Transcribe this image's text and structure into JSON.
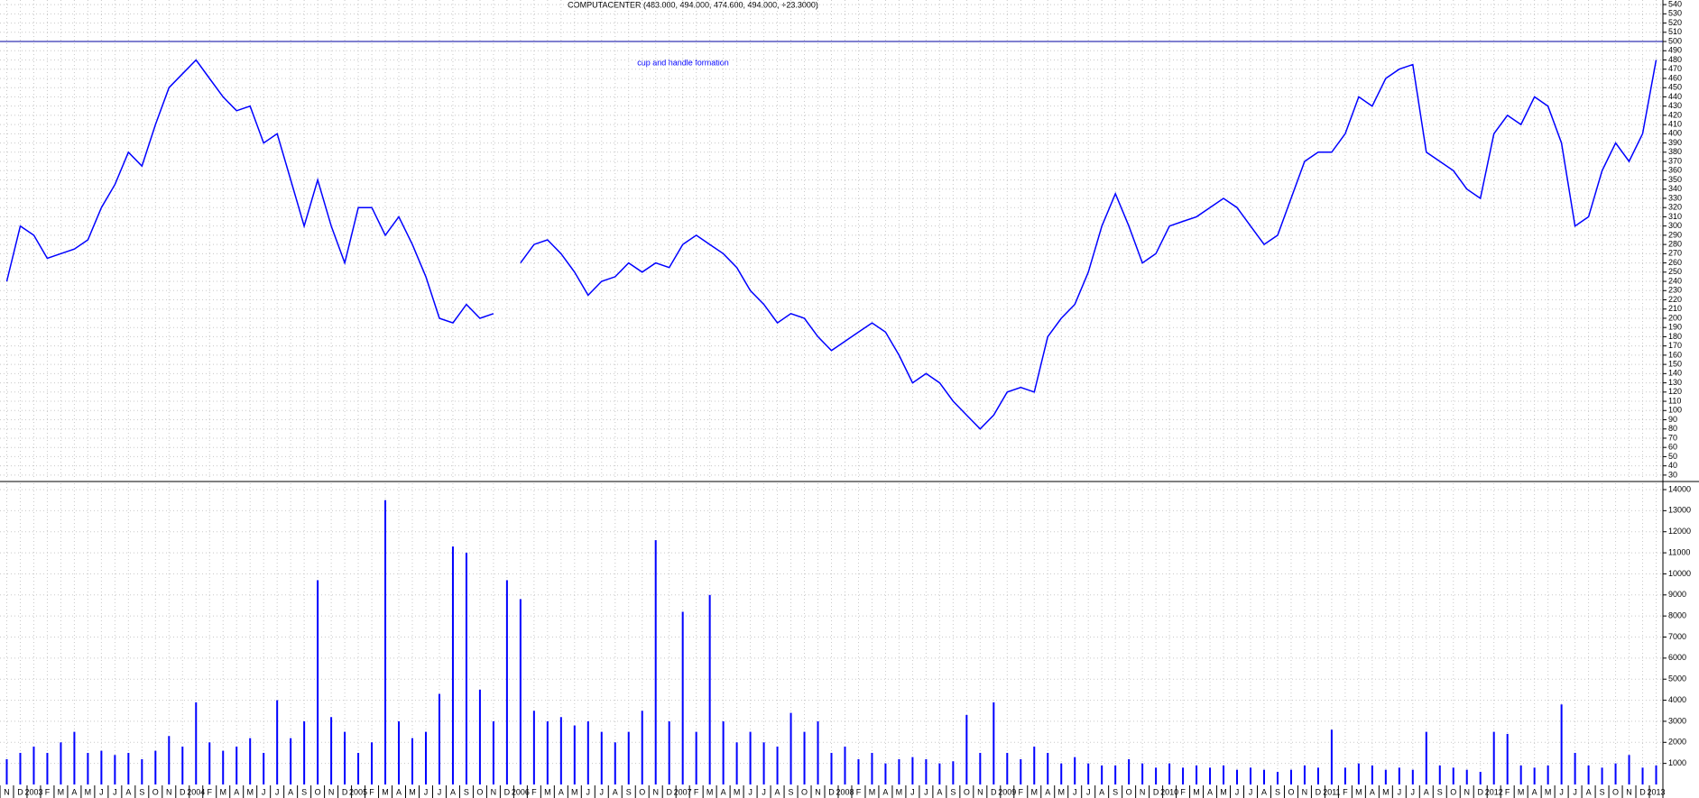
{
  "chart_data": [
    {
      "type": "line",
      "title": "COMPUTACENTER (483.000, 494.000, 474.600, 494.000, +23.3000)",
      "annotation": "cup and handle formation",
      "hline": 500,
      "color": "#0000ff",
      "hline_color": "#0000a0",
      "grid": true,
      "categories": [
        "N",
        "D",
        "2003",
        "F",
        "M",
        "A",
        "M",
        "J",
        "J",
        "A",
        "S",
        "O",
        "N",
        "D",
        "2004",
        "F",
        "M",
        "A",
        "M",
        "J",
        "J",
        "A",
        "S",
        "O",
        "N",
        "D",
        "2005",
        "F",
        "M",
        "A",
        "M",
        "J",
        "J",
        "A",
        "S",
        "O",
        "N",
        "D",
        "2006",
        "F",
        "M",
        "A",
        "M",
        "J",
        "J",
        "A",
        "S",
        "O",
        "N",
        "D",
        "2007",
        "F",
        "M",
        "A",
        "M",
        "J",
        "J",
        "A",
        "S",
        "O",
        "N",
        "D",
        "2008",
        "F",
        "M",
        "A",
        "M",
        "J",
        "J",
        "A",
        "S",
        "O",
        "N",
        "D",
        "2009",
        "F",
        "M",
        "A",
        "M",
        "J",
        "J",
        "A",
        "S",
        "O",
        "N",
        "D",
        "2010",
        "F",
        "M",
        "A",
        "M",
        "J",
        "J",
        "A",
        "S",
        "O",
        "N",
        "D",
        "2011",
        "F",
        "M",
        "A",
        "M",
        "J",
        "J",
        "A",
        "S",
        "O",
        "N",
        "D",
        "2012",
        "F",
        "M",
        "A",
        "M",
        "J",
        "J",
        "A",
        "S",
        "O",
        "N",
        "D",
        "2013"
      ],
      "values": [
        240,
        300,
        290,
        265,
        270,
        275,
        285,
        320,
        345,
        380,
        365,
        410,
        450,
        465,
        480,
        460,
        440,
        425,
        430,
        390,
        400,
        350,
        300,
        350,
        300,
        260,
        320,
        320,
        290,
        310,
        280,
        245,
        200,
        195,
        215,
        200,
        205,
        null,
        260,
        280,
        285,
        270,
        250,
        225,
        240,
        245,
        260,
        250,
        260,
        255,
        280,
        290,
        280,
        270,
        255,
        230,
        215,
        195,
        205,
        200,
        180,
        165,
        175,
        185,
        195,
        185,
        160,
        130,
        140,
        130,
        110,
        95,
        80,
        95,
        120,
        125,
        120,
        180,
        200,
        215,
        250,
        300,
        335,
        300,
        260,
        270,
        300,
        305,
        310,
        320,
        330,
        320,
        300,
        280,
        290,
        330,
        370,
        380,
        380,
        400,
        440,
        430,
        460,
        470,
        475,
        380,
        370,
        360,
        340,
        330,
        400,
        420,
        410,
        440,
        430,
        390,
        300,
        310,
        360,
        390,
        370,
        400,
        480
      ],
      "ylim": [
        25,
        545
      ],
      "yticks": [
        30,
        40,
        50,
        60,
        70,
        80,
        90,
        100,
        110,
        120,
        130,
        140,
        150,
        160,
        170,
        180,
        190,
        200,
        210,
        220,
        230,
        240,
        250,
        260,
        270,
        280,
        290,
        300,
        310,
        320,
        330,
        340,
        350,
        360,
        370,
        380,
        390,
        400,
        410,
        420,
        430,
        440,
        450,
        460,
        470,
        480,
        490,
        500,
        510,
        520,
        530,
        540
      ]
    },
    {
      "type": "bar",
      "color": "#0000ff",
      "grid": true,
      "values": [
        1200,
        1500,
        1800,
        1500,
        2000,
        2500,
        1500,
        1600,
        1400,
        1500,
        1200,
        1600,
        2300,
        1800,
        3900,
        2000,
        1600,
        1800,
        2200,
        1500,
        4000,
        2200,
        3000,
        9700,
        3200,
        2500,
        1500,
        2000,
        13500,
        3000,
        2200,
        2500,
        4300,
        11300,
        11000,
        4500,
        3000,
        9700,
        8800,
        3500,
        3000,
        3200,
        2800,
        3000,
        2500,
        2000,
        2500,
        3500,
        11600,
        3000,
        8200,
        2500,
        9000,
        3000,
        2000,
        2500,
        2000,
        1800,
        3400,
        2500,
        3000,
        1500,
        1800,
        1200,
        1500,
        1000,
        1200,
        1300,
        1200,
        1000,
        1100,
        3300,
        1500,
        3900,
        1500,
        1200,
        1800,
        1500,
        1000,
        1300,
        1000,
        900,
        900,
        1200,
        1000,
        800,
        1000,
        800,
        900,
        800,
        900,
        700,
        800,
        700,
        600,
        700,
        900,
        800,
        2600,
        800,
        1000,
        900,
        700,
        800,
        700,
        2500,
        900,
        800,
        700,
        600,
        2500,
        2400,
        900,
        800,
        900,
        3800,
        1500,
        900,
        800,
        1000,
        1400,
        800,
        900
      ],
      "ylim": [
        0,
        14300
      ],
      "yticks": [
        1000,
        2000,
        3000,
        4000,
        5000,
        6000,
        7000,
        8000,
        9000,
        10000,
        11000,
        12000,
        13000,
        14000
      ]
    }
  ]
}
